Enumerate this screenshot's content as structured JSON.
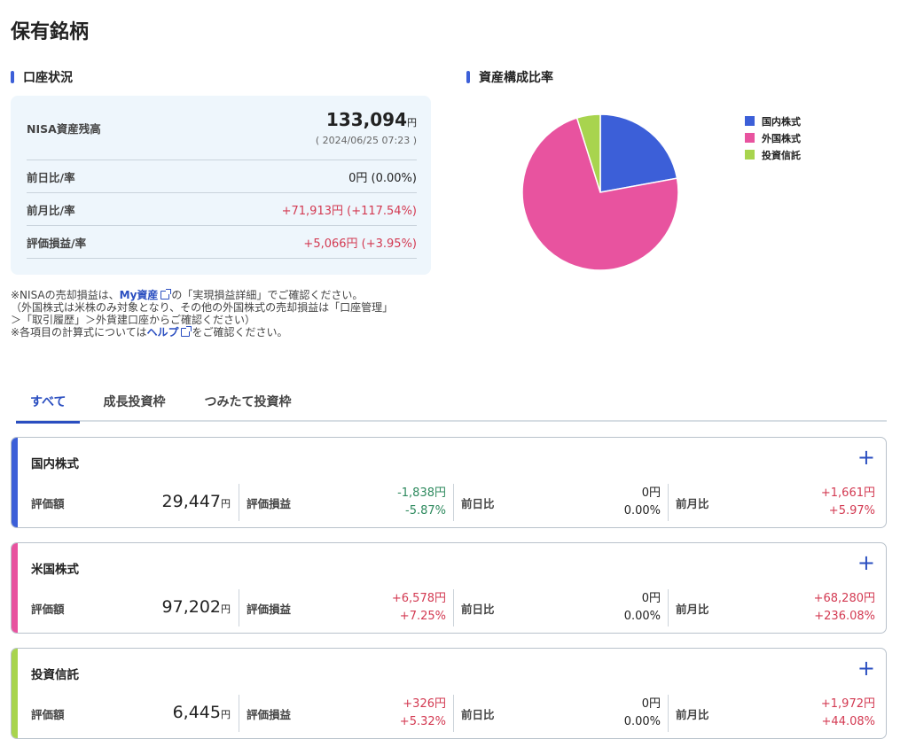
{
  "page_title": "保有銘柄",
  "account": {
    "heading": "口座状況",
    "nisa_label": "NISA資産残高",
    "nisa_value": "133,094",
    "yen": "円",
    "timestamp": "( 2024/06/25 07:23 )",
    "rows": [
      {
        "label": "前日比/率",
        "value": "0円 (0.00%)",
        "color": "#222222"
      },
      {
        "label": "前月比/率",
        "value": "+71,913円 (+117.54%)",
        "color": "#d33a52"
      },
      {
        "label": "評価損益/率",
        "value": "+5,066円 (+3.95%)",
        "color": "#d33a52"
      }
    ]
  },
  "notes": {
    "line1_pre": "※NISAの売却損益は、",
    "line1_link": "My資産",
    "line1_post": "の「実現損益詳細」でご確認ください。",
    "line2": "（外国株式は米株のみ対象となり、その他の外国株式の売却損益は「口座管理」",
    "line3": "＞「取引履歴」＞外貨建口座からご確認ください）",
    "line4_pre": "※各項目の計算式については",
    "line4_link": "ヘルプ",
    "line4_post": "をご確認ください。"
  },
  "composition": {
    "heading": "資産構成比率",
    "colors": [
      "#3c5fd8",
      "#e8539f",
      "#a8d44e"
    ],
    "legend": [
      "国内株式",
      "外国株式",
      "投資信託"
    ],
    "values": [
      29447,
      97202,
      6445
    ]
  },
  "tabs": [
    "すべて",
    "成長投資枠",
    "つみたて投資枠"
  ],
  "labels": {
    "valuation": "評価額",
    "pl": "評価損益",
    "day": "前日比",
    "month": "前月比",
    "yen": "円",
    "plus": "+"
  },
  "holdings": [
    {
      "name": "国内株式",
      "accent": "#3c5fd8",
      "valuation": "29,447",
      "pl1": "-1,838円",
      "pl2": "-5.87%",
      "pl_color": "#2e8a5e",
      "day1": "0円",
      "day2": "0.00%",
      "day_color": "#222222",
      "month1": "+1,661円",
      "month2": "+5.97%",
      "month_color": "#d33a52"
    },
    {
      "name": "米国株式",
      "accent": "#e8539f",
      "valuation": "97,202",
      "pl1": "+6,578円",
      "pl2": "+7.25%",
      "pl_color": "#d33a52",
      "day1": "0円",
      "day2": "0.00%",
      "day_color": "#222222",
      "month1": "+68,280円",
      "month2": "+236.08%",
      "month_color": "#d33a52"
    },
    {
      "name": "投資信託",
      "accent": "#a8d44e",
      "valuation": "6,445",
      "pl1": "+326円",
      "pl2": "+5.32%",
      "pl_color": "#d33a52",
      "day1": "0円",
      "day2": "0.00%",
      "day_color": "#222222",
      "month1": "+1,972円",
      "month2": "+44.08%",
      "month_color": "#d33a52"
    }
  ]
}
